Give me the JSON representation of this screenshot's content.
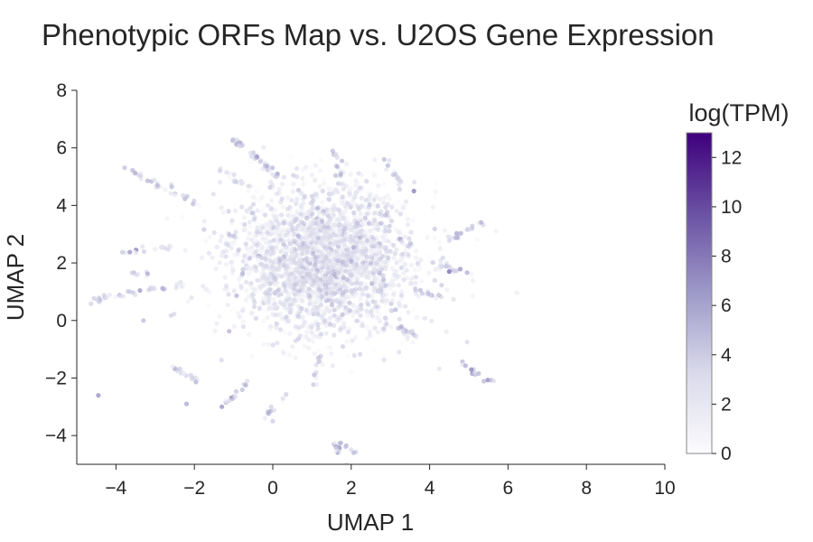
{
  "chart_data": {
    "type": "scatter",
    "title": "Phenotypic ORFs Map vs. U2OS Gene Expression",
    "xlabel": "UMAP 1",
    "ylabel": "UMAP 2",
    "xlim": [
      -5,
      10
    ],
    "ylim": [
      -5,
      8
    ],
    "xticks": [
      -4,
      -2,
      0,
      2,
      4,
      6,
      8,
      10
    ],
    "xtick_labels": [
      "−4",
      "−2",
      "0",
      "2",
      "4",
      "6",
      "8",
      "10"
    ],
    "yticks": [
      -4,
      -2,
      0,
      2,
      4,
      6,
      8
    ],
    "ytick_labels": [
      "−4",
      "−2",
      "0",
      "2",
      "4",
      "6",
      "8"
    ],
    "grid": false,
    "colorbar": {
      "label": "log(TPM)",
      "range": [
        0,
        13
      ],
      "ticks": [
        0,
        2,
        4,
        6,
        8,
        10,
        12
      ],
      "tick_labels": [
        "0",
        "2",
        "4",
        "6",
        "8",
        "10",
        "12"
      ],
      "colors": [
        "#fcfbfd",
        "#dadaeb",
        "#9e9ac8",
        "#6a51a3",
        "#3f007d"
      ]
    },
    "point_color_scale": "Purples",
    "cluster": {
      "center": [
        1.3,
        2.1
      ],
      "spread": [
        1.15,
        1.25
      ],
      "n_points": 2600
    },
    "streaks": [
      {
        "from": [
          -4.6,
          0.7
        ],
        "to": [
          -2.2,
          1.3
        ],
        "n": 35
      },
      {
        "from": [
          -3.9,
          5.4
        ],
        "to": [
          -1.8,
          3.9
        ],
        "n": 30
      },
      {
        "from": [
          -4.0,
          2.3
        ],
        "to": [
          -2.6,
          2.6
        ],
        "n": 18
      },
      {
        "from": [
          -1.0,
          6.3
        ],
        "to": [
          0.2,
          5.0
        ],
        "n": 40
      },
      {
        "from": [
          -1.4,
          5.3
        ],
        "to": [
          -0.6,
          4.6
        ],
        "n": 15
      },
      {
        "from": [
          4.5,
          2.8
        ],
        "to": [
          5.5,
          3.5
        ],
        "n": 20
      },
      {
        "from": [
          4.0,
          2.1
        ],
        "to": [
          4.9,
          1.7
        ],
        "n": 15
      },
      {
        "from": [
          3.6,
          1.0
        ],
        "to": [
          4.4,
          0.8
        ],
        "n": 15
      },
      {
        "from": [
          3.7,
          -0.6
        ],
        "to": [
          3.2,
          -0.2
        ],
        "n": 18
      },
      {
        "from": [
          4.8,
          -1.5
        ],
        "to": [
          5.5,
          -2.1
        ],
        "n": 15
      },
      {
        "from": [
          1.5,
          -4.2
        ],
        "to": [
          2.1,
          -4.6
        ],
        "n": 12
      },
      {
        "from": [
          1.6,
          -4.4
        ],
        "to": [
          1.8,
          -5.0
        ],
        "n": 8
      },
      {
        "from": [
          -2.6,
          -1.6
        ],
        "to": [
          -1.9,
          -2.1
        ],
        "n": 18
      },
      {
        "from": [
          -1.2,
          -2.9
        ],
        "to": [
          -0.6,
          -2.1
        ],
        "n": 15
      },
      {
        "from": [
          -0.2,
          -3.4
        ],
        "to": [
          0.3,
          -2.6
        ],
        "n": 10
      },
      {
        "from": [
          1.1,
          -2.4
        ],
        "to": [
          1.2,
          -1.0
        ],
        "n": 15
      },
      {
        "from": [
          1.5,
          6.0
        ],
        "to": [
          1.8,
          5.0
        ],
        "n": 15
      },
      {
        "from": [
          2.9,
          5.6
        ],
        "to": [
          3.3,
          4.6
        ],
        "n": 12
      },
      {
        "from": [
          -3.8,
          1.7
        ],
        "to": [
          -3.2,
          1.6
        ],
        "n": 8
      }
    ],
    "isolated_points": [
      {
        "x": -4.45,
        "y": -2.6,
        "v": 7
      },
      {
        "x": -3.3,
        "y": 0.0,
        "v": 5
      },
      {
        "x": -2.2,
        "y": -2.9,
        "v": 6
      },
      {
        "x": 4.5,
        "y": 1.7,
        "v": 9
      },
      {
        "x": 3.6,
        "y": 4.5,
        "v": 8
      },
      {
        "x": -1.3,
        "y": -3.0,
        "v": 7
      },
      {
        "x": 0.0,
        "y": -3.5,
        "v": 4
      }
    ]
  }
}
